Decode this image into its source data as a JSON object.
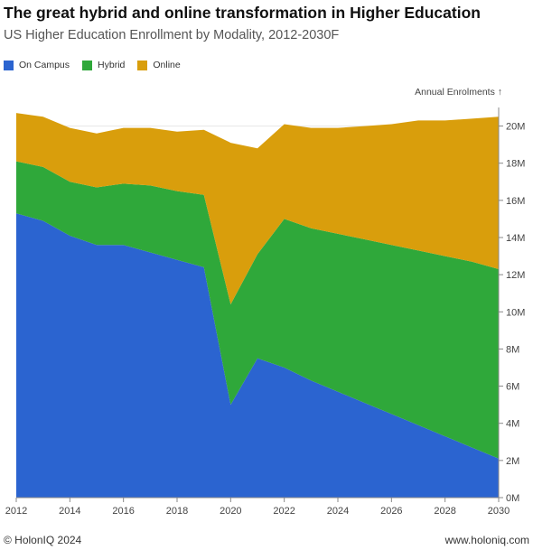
{
  "header": {
    "title": "The great hybrid and online transformation in Higher Education",
    "subtitle": "US Higher Education Enrollment by Modality, 2012-2030F"
  },
  "footer": {
    "copyright": "© HolonIQ 2024",
    "website": "www.holoniq.com"
  },
  "chart_data": {
    "type": "area",
    "stacked": true,
    "title": "The great hybrid and online transformation in Higher Education",
    "subtitle": "US Higher Education Enrollment by Modality, 2012-2030F",
    "ylabel": "Annual Enrolments ↑",
    "x": [
      2012,
      2013,
      2014,
      2015,
      2016,
      2017,
      2018,
      2019,
      2020,
      2021,
      2022,
      2023,
      2024,
      2025,
      2026,
      2027,
      2028,
      2029,
      2030
    ],
    "xlim": [
      2012,
      2030
    ],
    "xticks": [
      "2012",
      "2014",
      "2016",
      "2018",
      "2020",
      "2022",
      "2024",
      "2026",
      "2028",
      "2030"
    ],
    "ylim": [
      0,
      21000000
    ],
    "yticks": [
      "0M",
      "2M",
      "4M",
      "6M",
      "8M",
      "10M",
      "12M",
      "14M",
      "16M",
      "18M",
      "20M"
    ],
    "y_axis_position": "right",
    "legend_position": "top-left",
    "grid": false,
    "series": [
      {
        "name": "On Campus",
        "color": "#2B64D0",
        "values": [
          15300000,
          14900000,
          14100000,
          13600000,
          13600000,
          13200000,
          12800000,
          12400000,
          5000000,
          7500000,
          7000000,
          6300000,
          5700000,
          5100000,
          4500000,
          3900000,
          3300000,
          2700000,
          2100000
        ]
      },
      {
        "name": "Hybrid",
        "color": "#2FA83A",
        "values": [
          2800000,
          2900000,
          2900000,
          3100000,
          3300000,
          3600000,
          3700000,
          3900000,
          5400000,
          5600000,
          8000000,
          8200000,
          8500000,
          8800000,
          9100000,
          9400000,
          9700000,
          10000000,
          10200000
        ]
      },
      {
        "name": "Online",
        "color": "#D99E0C",
        "values": [
          2600000,
          2700000,
          2900000,
          2900000,
          3000000,
          3100000,
          3200000,
          3500000,
          8700000,
          5700000,
          5100000,
          5400000,
          5700000,
          6100000,
          6500000,
          7000000,
          7300000,
          7700000,
          8200000
        ]
      }
    ]
  }
}
